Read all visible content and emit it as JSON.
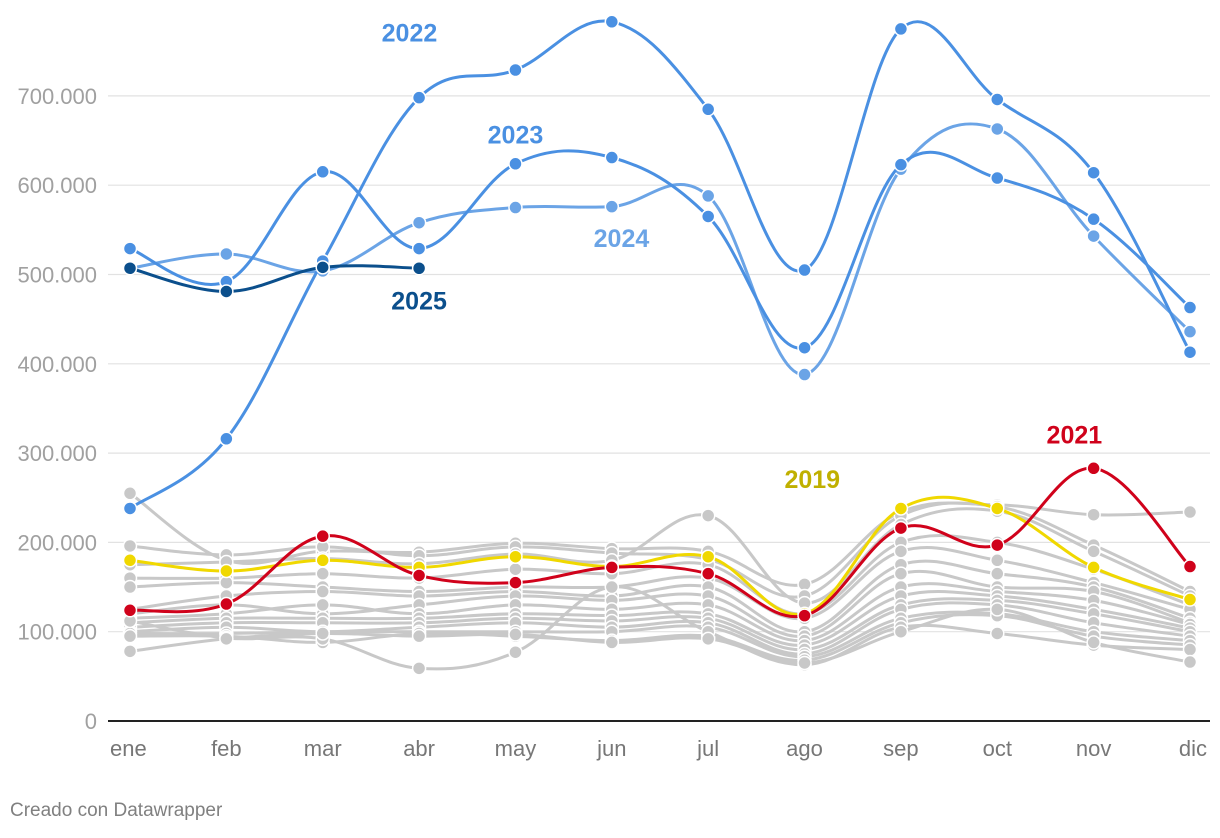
{
  "credit": "Creado con Datawrapper",
  "chart_data": {
    "type": "line",
    "title": "",
    "xlabel": "",
    "ylabel": "",
    "ylim": [
      0,
      800000
    ],
    "yticks": [
      0,
      100000,
      200000,
      300000,
      400000,
      500000,
      600000,
      700000
    ],
    "ytick_labels": [
      "0",
      "100.000",
      "200.000",
      "300.000",
      "400.000",
      "500.000",
      "600.000",
      "700.000"
    ],
    "categories": [
      "ene",
      "feb",
      "mar",
      "abr",
      "may",
      "jun",
      "jul",
      "ago",
      "sep",
      "oct",
      "nov",
      "dic"
    ],
    "grid": "horizontal",
    "colors": {
      "2022": "#4a90e2",
      "2023": "#4a90e2",
      "2024": "#6ba4e6",
      "2025": "#0b4f8c",
      "2021": "#d0021b",
      "2019": "#f0d800",
      "2019_label": "#c0b000",
      "other": "#c8c8c8"
    },
    "highlighted": [
      {
        "name": "2022",
        "color": "#4a90e2",
        "values": [
          238000,
          316000,
          515000,
          698000,
          729000,
          783000,
          685000,
          505000,
          775000,
          696000,
          614000,
          413000
        ]
      },
      {
        "name": "2023",
        "color": "#4a90e2",
        "values": [
          529000,
          492000,
          615000,
          529000,
          624000,
          631000,
          565000,
          418000,
          623000,
          608000,
          562000,
          463000
        ]
      },
      {
        "name": "2024",
        "color": "#6ba4e6",
        "values": [
          507000,
          523000,
          504000,
          558000,
          575000,
          576000,
          588000,
          388000,
          618000,
          663000,
          543000,
          436000
        ]
      },
      {
        "name": "2025",
        "color": "#0b4f8c",
        "values": [
          507000,
          481000,
          508000,
          507000
        ]
      },
      {
        "name": "2019",
        "color": "#f0d800",
        "values": [
          180000,
          168000,
          180000,
          172000,
          184000,
          173000,
          184000,
          120000,
          238000,
          238000,
          172000,
          136000
        ]
      },
      {
        "name": "2021",
        "color": "#d0021b",
        "values": [
          124000,
          131000,
          207000,
          163000,
          155000,
          172000,
          165000,
          118000,
          216000,
          197000,
          283000,
          173000
        ]
      }
    ],
    "other_series": [
      {
        "values": [
          255000,
          180000,
          190000,
          189000,
          199000,
          193000,
          190000,
          153000,
          234000,
          242000,
          231000,
          234000
        ]
      },
      {
        "values": [
          196000,
          186000,
          195000,
          185000,
          195000,
          188000,
          181000,
          140000,
          230000,
          240000,
          197000,
          145000
        ]
      },
      {
        "values": [
          175000,
          178000,
          182000,
          176000,
          187000,
          180000,
          230000,
          132000,
          220000,
          235000,
          190000,
          140000
        ]
      },
      {
        "values": [
          160000,
          160000,
          165000,
          160000,
          170000,
          165000,
          175000,
          120000,
          200000,
          200000,
          170000,
          130000
        ]
      },
      {
        "values": [
          150000,
          155000,
          150000,
          145000,
          150000,
          150000,
          160000,
          115000,
          190000,
          180000,
          155000,
          125000
        ]
      },
      {
        "values": [
          125000,
          140000,
          145000,
          140000,
          145000,
          140000,
          150000,
          100000,
          175000,
          165000,
          150000,
          115000
        ]
      },
      {
        "values": [
          120000,
          130000,
          120000,
          130000,
          140000,
          135000,
          140000,
          95000,
          165000,
          150000,
          145000,
          110000
        ]
      },
      {
        "values": [
          115000,
          120000,
          130000,
          120000,
          130000,
          125000,
          130000,
          90000,
          150000,
          145000,
          135000,
          108000
        ]
      },
      {
        "values": [
          110000,
          115000,
          115000,
          115000,
          120000,
          118000,
          120000,
          85000,
          140000,
          140000,
          125000,
          104000
        ]
      },
      {
        "values": [
          105000,
          110000,
          110000,
          110000,
          115000,
          112000,
          115000,
          80000,
          130000,
          135000,
          120000,
          100000
        ]
      },
      {
        "values": [
          100000,
          105000,
          100000,
          105000,
          110000,
          105000,
          110000,
          75000,
          125000,
          130000,
          110000,
          95000
        ]
      },
      {
        "values": [
          98000,
          98000,
          100000,
          100000,
          100000,
          100000,
          105000,
          72000,
          115000,
          120000,
          100000,
          90000
        ]
      },
      {
        "values": [
          95000,
          95000,
          88000,
          98000,
          95000,
          90000,
          95000,
          68000,
          110000,
          118000,
          95000,
          85000
        ]
      },
      {
        "values": [
          112000,
          93000,
          92000,
          59000,
          77000,
          150000,
          100000,
          63000,
          105000,
          98000,
          85000,
          80000
        ]
      },
      {
        "values": [
          78000,
          92000,
          98000,
          95000,
          97000,
          88000,
          92000,
          65000,
          100000,
          125000,
          88000,
          66000
        ]
      }
    ],
    "labels": [
      {
        "text": "2022",
        "series": "2022",
        "color": "#4a90e2"
      },
      {
        "text": "2023",
        "series": "2023",
        "color": "#4a90e2"
      },
      {
        "text": "2024",
        "series": "2024",
        "color": "#6ba4e6"
      },
      {
        "text": "2025",
        "series": "2025",
        "color": "#0b4f8c"
      },
      {
        "text": "2019",
        "series": "2019",
        "color": "#c0b000"
      },
      {
        "text": "2021",
        "series": "2021",
        "color": "#d0021b"
      }
    ]
  }
}
